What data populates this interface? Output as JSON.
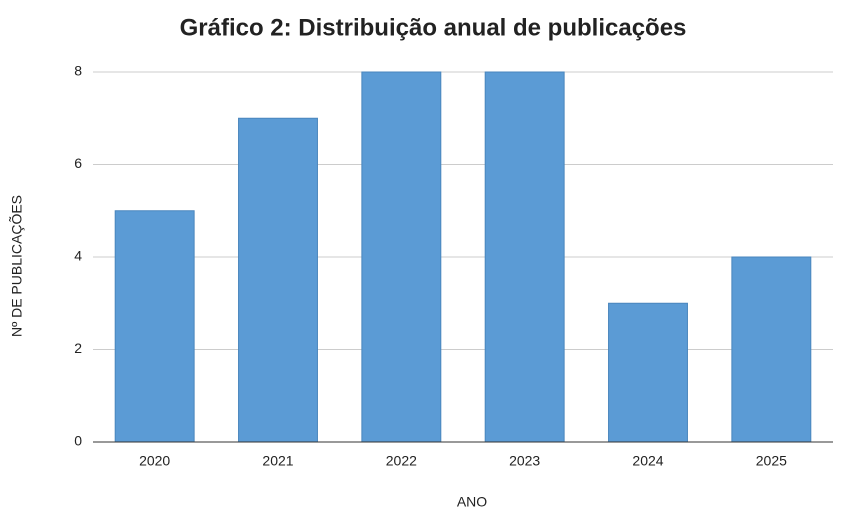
{
  "chart_data": {
    "type": "bar",
    "title": "Gráfico 2: Distribuição anual de publicações",
    "x_label": "ANO",
    "y_label": "Nº DE PUBLICAÇÕES",
    "categories": [
      "2020",
      "2021",
      "2022",
      "2023",
      "2024",
      "2025"
    ],
    "values": [
      5,
      7,
      8,
      8,
      3,
      4
    ],
    "color": "#5b9bd5",
    "ylim": [
      0,
      8
    ],
    "yticks": [
      0,
      2,
      4,
      6,
      8
    ],
    "grid": true
  }
}
